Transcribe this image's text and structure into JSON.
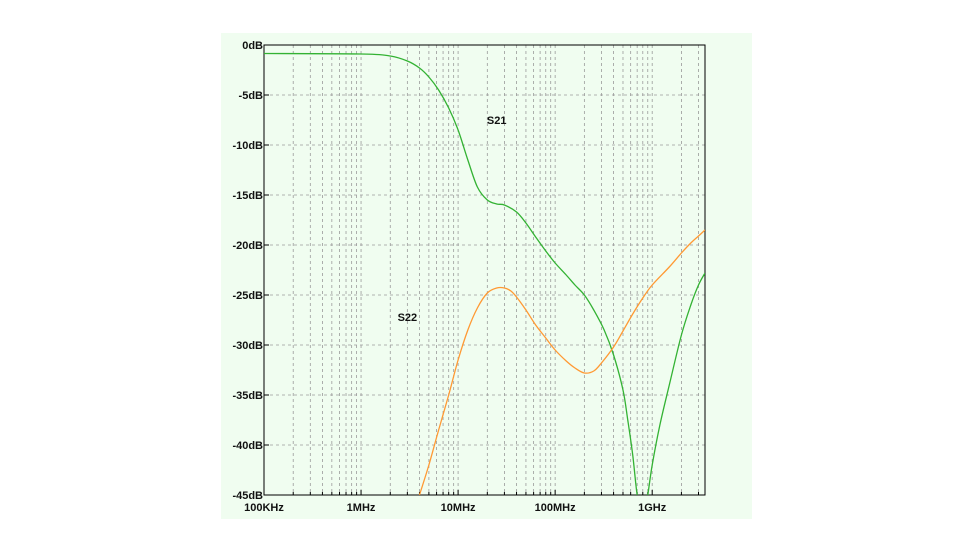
{
  "chart_data": {
    "type": "line",
    "title": "",
    "xlabel": "",
    "ylabel": "",
    "x_scale": "log",
    "xlim_hz": [
      100000,
      3500000000
    ],
    "ylim": [
      -45,
      0
    ],
    "grid": true,
    "x_tick_labels": [
      {
        "label": "100KHz",
        "value": 100000
      },
      {
        "label": "1MHz",
        "value": 1000000
      },
      {
        "label": "10MHz",
        "value": 10000000
      },
      {
        "label": "100MHz",
        "value": 100000000
      },
      {
        "label": "1GHz",
        "value": 1000000000
      }
    ],
    "y_tick_labels": [
      {
        "label": "0dB",
        "value": 0
      },
      {
        "label": "-5dB",
        "value": -5
      },
      {
        "label": "-10dB",
        "value": -10
      },
      {
        "label": "-15dB",
        "value": -15
      },
      {
        "label": "-20dB",
        "value": -20
      },
      {
        "label": "-25dB",
        "value": -25
      },
      {
        "label": "-30dB",
        "value": -30
      },
      {
        "label": "-35dB",
        "value": -35
      },
      {
        "label": "-40dB",
        "value": -40
      },
      {
        "label": "-45dB",
        "value": -45
      }
    ],
    "series": [
      {
        "name": "S21",
        "color": "#33b233",
        "x": [
          100000,
          1000000,
          2000000,
          3000000,
          4000000,
          5000000,
          6300000,
          8000000,
          10000000,
          12600000,
          15800000,
          20000000,
          25000000,
          30000000,
          40000000,
          50000000,
          63000000,
          80000000,
          100000000,
          130000000,
          160000000,
          200000000,
          250000000,
          320000000,
          400000000,
          500000000,
          560000000,
          630000000,
          700000000,
          760000000,
          800000000,
          850000000,
          900000000,
          1000000000,
          1200000000,
          1500000000,
          2000000000,
          2500000000,
          3000000000,
          3500000000
        ],
        "y": [
          -0.85,
          -0.9,
          -1.1,
          -1.6,
          -2.3,
          -3.2,
          -4.5,
          -6.3,
          -8.5,
          -11.5,
          -14.2,
          -15.5,
          -15.9,
          -16.0,
          -16.7,
          -17.8,
          -19.2,
          -20.6,
          -21.8,
          -23.0,
          -24.0,
          -25.0,
          -26.5,
          -28.5,
          -31.0,
          -34.5,
          -37.5,
          -41.0,
          -45.0,
          -46.0,
          -46.0,
          -46.0,
          -45.0,
          -42.0,
          -38.0,
          -34.0,
          -29.0,
          -26.0,
          -24.0,
          -22.8
        ]
      },
      {
        "name": "S22",
        "color": "#ff9933",
        "x": [
          4000000,
          5000000,
          6300000,
          8000000,
          10000000,
          12600000,
          15800000,
          20000000,
          25000000,
          30000000,
          35000000,
          40000000,
          50000000,
          63000000,
          80000000,
          100000000,
          130000000,
          160000000,
          200000000,
          250000000,
          300000000,
          400000000,
          500000000,
          630000000,
          800000000,
          1000000000,
          1500000000,
          2000000000,
          2500000000,
          3000000000,
          3500000000
        ],
        "y": [
          -45.0,
          -42.0,
          -38.5,
          -35.0,
          -31.5,
          -28.5,
          -26.3,
          -24.8,
          -24.3,
          -24.3,
          -24.6,
          -25.2,
          -26.5,
          -28.0,
          -29.3,
          -30.5,
          -31.6,
          -32.3,
          -32.8,
          -32.6,
          -31.8,
          -30.2,
          -28.6,
          -26.9,
          -25.3,
          -24.0,
          -22.2,
          -20.8,
          -19.8,
          -19.1,
          -18.5
        ]
      }
    ],
    "annotations": [
      {
        "text": "S21",
        "x": 25000000,
        "y": -7.5
      },
      {
        "text": "S22",
        "x": 3000000,
        "y": -27.2
      }
    ]
  }
}
